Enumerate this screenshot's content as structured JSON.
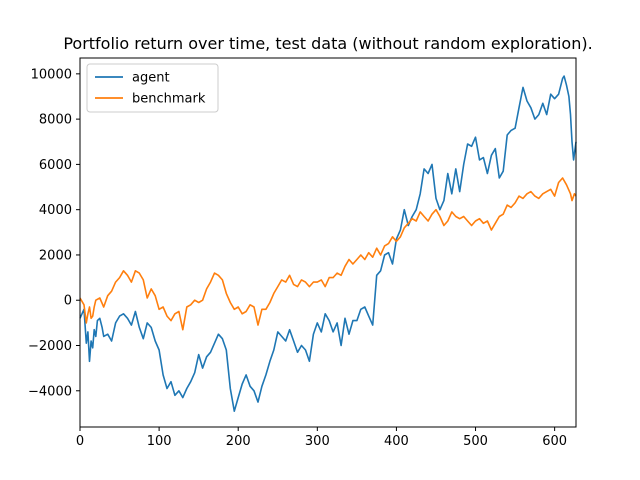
{
  "chart_data": {
    "type": "line",
    "title": "Portfolio return over time, test data (without random exploration).",
    "xlabel": "",
    "ylabel": "",
    "xlim": [
      0,
      627
    ],
    "ylim": [
      -5600,
      10700
    ],
    "xticks": [
      0,
      100,
      200,
      300,
      400,
      500,
      600
    ],
    "yticks": [
      -4000,
      -2000,
      0,
      2000,
      4000,
      6000,
      8000,
      10000
    ],
    "grid": false,
    "legend_position": "top-left",
    "series": [
      {
        "name": "agent",
        "color": "#1f77b4",
        "x": [
          0,
          5,
          8,
          10,
          12,
          14,
          16,
          18,
          20,
          22,
          25,
          28,
          30,
          35,
          40,
          45,
          50,
          55,
          60,
          65,
          70,
          75,
          80,
          85,
          90,
          95,
          100,
          105,
          110,
          115,
          120,
          125,
          130,
          135,
          140,
          145,
          150,
          155,
          160,
          165,
          170,
          175,
          180,
          185,
          190,
          195,
          200,
          205,
          210,
          215,
          220,
          225,
          230,
          235,
          240,
          245,
          250,
          255,
          260,
          265,
          270,
          275,
          280,
          285,
          290,
          295,
          300,
          305,
          310,
          315,
          320,
          325,
          330,
          335,
          340,
          345,
          350,
          355,
          360,
          365,
          370,
          375,
          380,
          385,
          390,
          395,
          400,
          405,
          410,
          415,
          420,
          425,
          430,
          435,
          440,
          445,
          450,
          455,
          460,
          465,
          470,
          475,
          480,
          485,
          490,
          495,
          500,
          505,
          510,
          515,
          520,
          525,
          530,
          535,
          540,
          545,
          550,
          555,
          560,
          565,
          570,
          575,
          580,
          585,
          590,
          595,
          600,
          605,
          610,
          612,
          615,
          618,
          620,
          622,
          624,
          627
        ],
        "y": [
          -800,
          -400,
          -1900,
          -1400,
          -2700,
          -1800,
          -2100,
          -1300,
          -1600,
          -900,
          -800,
          -1200,
          -1600,
          -1500,
          -1800,
          -1000,
          -700,
          -600,
          -800,
          -1100,
          -500,
          -1200,
          -1700,
          -1000,
          -1200,
          -1800,
          -2200,
          -3300,
          -3900,
          -3600,
          -4200,
          -4000,
          -4300,
          -3900,
          -3600,
          -3200,
          -2400,
          -3000,
          -2500,
          -2300,
          -1900,
          -1500,
          -1700,
          -2200,
          -3900,
          -4900,
          -4300,
          -3700,
          -3300,
          -3800,
          -4000,
          -4500,
          -3800,
          -3300,
          -2700,
          -2200,
          -1400,
          -1600,
          -1800,
          -1300,
          -1800,
          -2300,
          -2000,
          -2200,
          -2700,
          -1500,
          -1000,
          -1400,
          -600,
          -900,
          -1400,
          -1000,
          -2000,
          -800,
          -1500,
          -900,
          -900,
          -400,
          -300,
          -700,
          -1100,
          1100,
          1300,
          2000,
          2100,
          1600,
          2700,
          3100,
          4000,
          3300,
          3700,
          4000,
          4700,
          5800,
          5600,
          6000,
          4500,
          4000,
          4400,
          5600,
          4700,
          5800,
          4800,
          6000,
          6900,
          6800,
          7200,
          6200,
          6300,
          5600,
          6400,
          6700,
          5400,
          5700,
          7300,
          7500,
          7600,
          8500,
          9400,
          8800,
          8500,
          8000,
          8200,
          8700,
          8200,
          9100,
          8900,
          9100,
          9800,
          9900,
          9500,
          9000,
          8200,
          7000,
          6200,
          7000
        ]
      },
      {
        "name": "benchmark",
        "color": "#ff7f0e",
        "x": [
          0,
          5,
          8,
          10,
          12,
          14,
          16,
          18,
          20,
          25,
          30,
          35,
          40,
          45,
          50,
          55,
          60,
          65,
          70,
          75,
          80,
          85,
          90,
          95,
          100,
          105,
          110,
          115,
          120,
          125,
          130,
          135,
          140,
          145,
          150,
          155,
          160,
          165,
          170,
          175,
          180,
          185,
          190,
          195,
          200,
          205,
          210,
          215,
          220,
          225,
          230,
          235,
          240,
          245,
          250,
          255,
          260,
          265,
          270,
          275,
          280,
          285,
          290,
          295,
          300,
          305,
          310,
          315,
          320,
          325,
          330,
          335,
          340,
          345,
          350,
          355,
          360,
          365,
          370,
          375,
          380,
          385,
          390,
          395,
          400,
          405,
          410,
          415,
          420,
          425,
          430,
          435,
          440,
          445,
          450,
          455,
          460,
          465,
          470,
          475,
          480,
          485,
          490,
          495,
          500,
          505,
          510,
          515,
          520,
          525,
          530,
          535,
          540,
          545,
          550,
          555,
          560,
          565,
          570,
          575,
          580,
          585,
          590,
          595,
          600,
          605,
          610,
          615,
          620,
          622,
          625,
          627
        ],
        "y": [
          100,
          -200,
          -1000,
          -600,
          -300,
          -800,
          -700,
          -300,
          0,
          100,
          -300,
          200,
          400,
          800,
          1000,
          1300,
          1100,
          800,
          1300,
          1200,
          900,
          100,
          500,
          200,
          -400,
          -300,
          -700,
          -900,
          -600,
          -500,
          -1300,
          -300,
          -200,
          0,
          -100,
          0,
          500,
          800,
          1200,
          1100,
          900,
          300,
          -100,
          -400,
          -300,
          -600,
          -500,
          -200,
          -300,
          -1100,
          -400,
          -400,
          -100,
          300,
          600,
          900,
          800,
          1100,
          700,
          600,
          900,
          800,
          600,
          800,
          800,
          900,
          600,
          1000,
          1000,
          1200,
          1100,
          1500,
          1800,
          1600,
          1800,
          2000,
          1800,
          2100,
          1900,
          2300,
          2000,
          2400,
          2500,
          2800,
          2600,
          2800,
          3200,
          3400,
          3600,
          3500,
          3900,
          3700,
          3500,
          3800,
          4000,
          3700,
          3300,
          3500,
          3900,
          3700,
          3600,
          3700,
          3500,
          3300,
          3500,
          3600,
          3400,
          3500,
          3100,
          3400,
          3700,
          3800,
          4200,
          4100,
          4300,
          4600,
          4500,
          4700,
          4800,
          4600,
          4500,
          4700,
          4800,
          4900,
          4600,
          5200,
          5400,
          5100,
          4700,
          4400,
          4700,
          4600
        ]
      }
    ]
  }
}
